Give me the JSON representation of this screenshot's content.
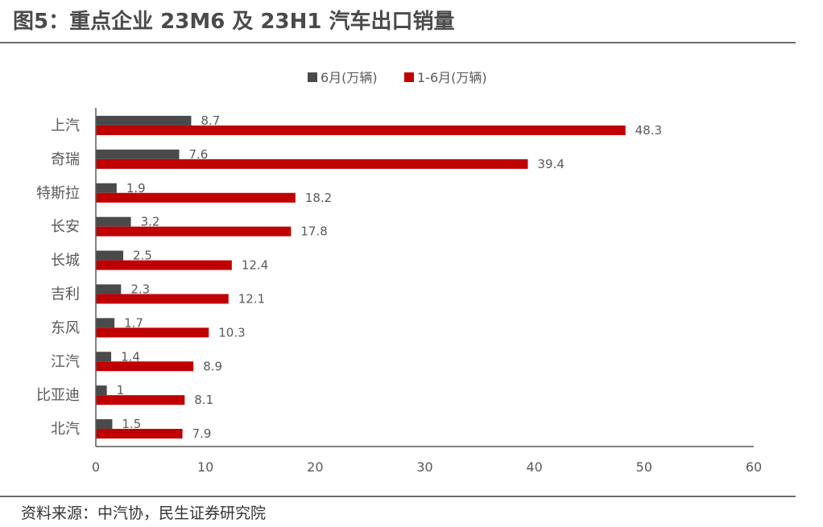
{
  "header": {
    "title": "图5：重点企业 23M6 及 23H1 汽车出口销量"
  },
  "footer": {
    "source": "资料来源：中汽协，民生证券研究院"
  },
  "colors": {
    "series_1": "#4a4a4a",
    "series_2": "#c00000",
    "axis": "#595959",
    "text": "#595959"
  },
  "chart_data": {
    "type": "bar",
    "orientation": "horizontal",
    "categories": [
      "上汽",
      "奇瑞",
      "特斯拉",
      "长安",
      "长城",
      "吉利",
      "东风",
      "江汽",
      "比亚迪",
      "北汽"
    ],
    "series": [
      {
        "name": "6月(万辆)",
        "values": [
          8.7,
          7.6,
          1.9,
          3.2,
          2.5,
          2.3,
          1.7,
          1.4,
          1,
          1.5
        ]
      },
      {
        "name": "1-6月(万辆)",
        "values": [
          48.3,
          39.4,
          18.2,
          17.8,
          12.4,
          12.1,
          10.3,
          8.9,
          8.1,
          7.9
        ]
      }
    ],
    "xlim": [
      0,
      60
    ],
    "xticks": [
      "0",
      "10",
      "20",
      "30",
      "40",
      "50",
      "60"
    ],
    "grid": false,
    "legend": "top"
  }
}
